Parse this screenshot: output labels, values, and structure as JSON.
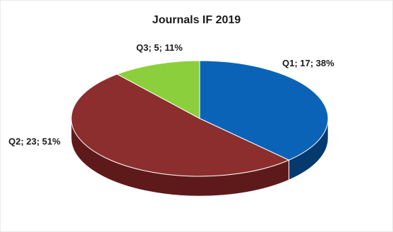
{
  "chart_data": {
    "type": "pie",
    "title": "Journals IF 2019",
    "slices": [
      {
        "label": "Q1; 17; 38%",
        "category": "Q1",
        "value": 17,
        "percent": 38,
        "color": "#0b63b8",
        "side_color": "#053a6e"
      },
      {
        "label": "Q2; 23; 51%",
        "category": "Q2",
        "value": 23,
        "percent": 51,
        "color": "#8c2e2e",
        "side_color": "#5e1a1a"
      },
      {
        "label": "Q3; 5; 11%",
        "category": "Q3",
        "value": 5,
        "percent": 11,
        "color": "#8ccf3c",
        "side_color": "#5e8f22"
      }
    ],
    "style": "3d-pie"
  }
}
